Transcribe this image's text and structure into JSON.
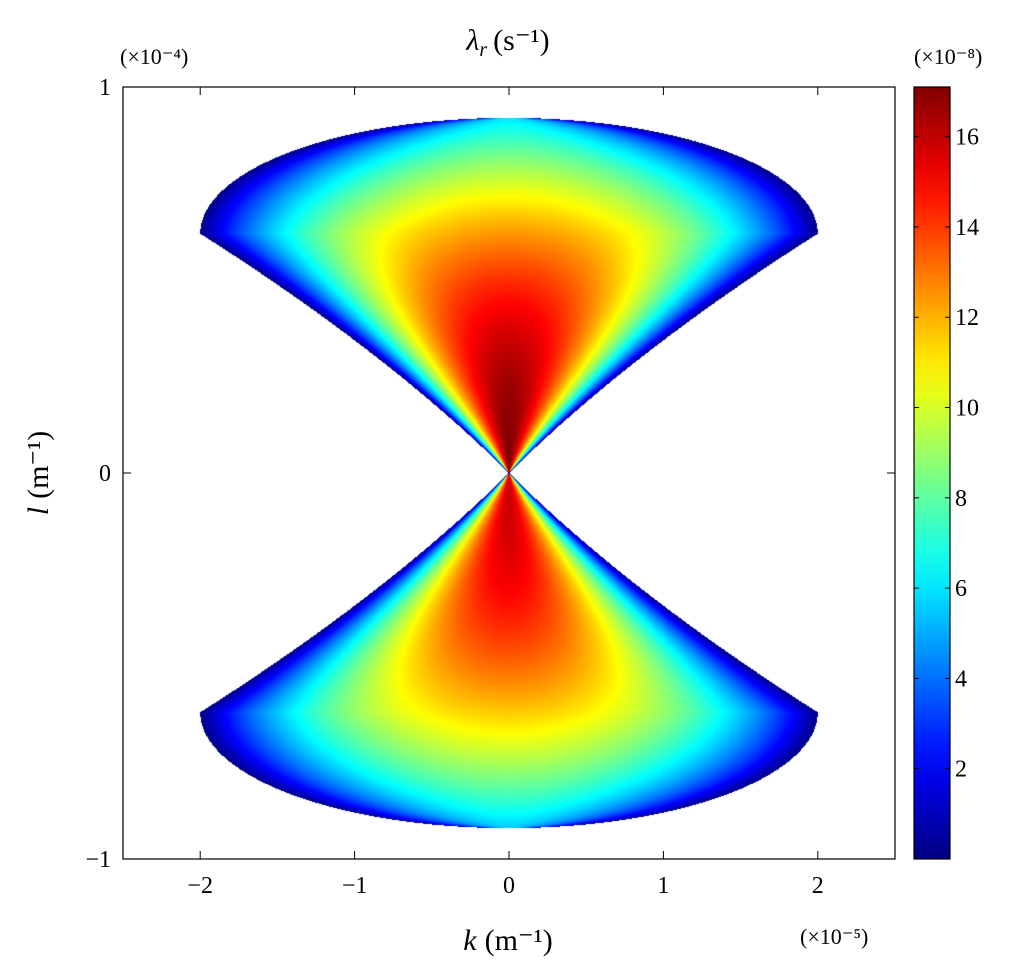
{
  "chart_data": {
    "type": "heatmap",
    "title": {
      "symbol": "λ",
      "subscript": "r",
      "unit": "(s⁻¹)"
    },
    "xlabel": {
      "symbol": "k",
      "unit": "(m⁻¹)"
    },
    "ylabel": {
      "symbol": "l",
      "unit": "(m⁻¹)"
    },
    "x_multiplier": "(×10⁻⁵)",
    "y_multiplier": "(×10⁻⁴)",
    "colorbar_multiplier": "(×10⁻⁸)",
    "xlim": [
      -2.5,
      2.5
    ],
    "ylim": [
      -1,
      1
    ],
    "x_ticks": [
      -2,
      -1,
      0,
      1,
      2
    ],
    "x_tick_labels": [
      "−2",
      "−1",
      "0",
      "1",
      "2"
    ],
    "y_ticks": [
      -1,
      0,
      1
    ],
    "y_tick_labels": [
      "−1",
      "0",
      "1"
    ],
    "colorbar": {
      "colormap": "jet",
      "range": [
        0,
        17.1
      ],
      "ticks": [
        2,
        4,
        6,
        8,
        10,
        12,
        14,
        16
      ],
      "tick_labels": [
        "2",
        "4",
        "6",
        "8",
        "10",
        "12",
        "14",
        "16"
      ]
    },
    "region": {
      "description_values": "instability region in (k,l); bow-tie shaped lobes touching at origin",
      "lobe_peak_value": 17.1,
      "lobe_extent_k": [
        -2.0,
        2.0
      ],
      "lobe_extent_l_abs_max": 0.92,
      "lobe_widest_l_abs": 0.62
    },
    "grid": false,
    "legend": "none"
  }
}
